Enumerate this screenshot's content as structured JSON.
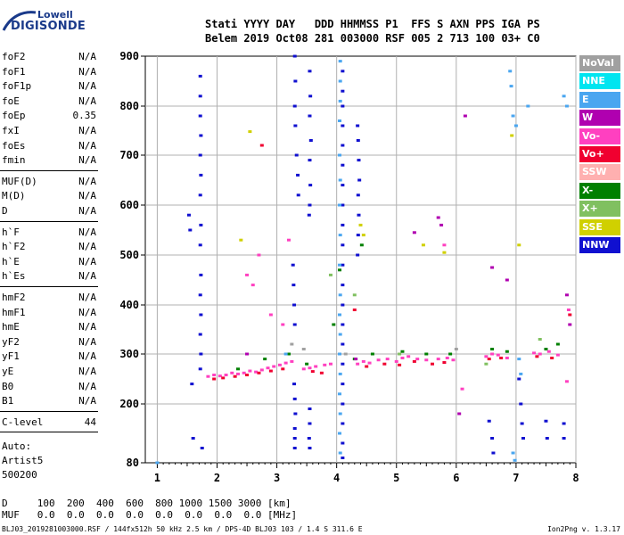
{
  "logo": {
    "line1": "Lowell",
    "line2": "DIGISONDE"
  },
  "header": {
    "line1": "Stati YYYY DAY   DDD HHMMSS P1  FFS S AXN PPS IGA PS",
    "line2": "Belem 2019 Oct08 281 003000 RSF 005 2 713 100 03+ C0"
  },
  "params": {
    "group1": [
      {
        "name": "foF2",
        "value": "N/A"
      },
      {
        "name": "foF1",
        "value": "N/A"
      },
      {
        "name": "foF1p",
        "value": "N/A"
      },
      {
        "name": "foE",
        "value": "N/A"
      },
      {
        "name": "foEp",
        "value": "0.35"
      },
      {
        "name": "fxI",
        "value": "N/A"
      },
      {
        "name": "foEs",
        "value": "N/A"
      },
      {
        "name": "fmin",
        "value": "N/A"
      }
    ],
    "group2": [
      {
        "name": "MUF(D)",
        "value": "N/A"
      },
      {
        "name": "M(D)",
        "value": "N/A"
      },
      {
        "name": "D",
        "value": "N/A"
      }
    ],
    "group3": [
      {
        "name": "h`F",
        "value": "N/A"
      },
      {
        "name": "h`F2",
        "value": "N/A"
      },
      {
        "name": "h`E",
        "value": "N/A"
      },
      {
        "name": "h`Es",
        "value": "N/A"
      }
    ],
    "group4": [
      {
        "name": "hmF2",
        "value": "N/A"
      },
      {
        "name": "hmF1",
        "value": "N/A"
      },
      {
        "name": "hmE",
        "value": "N/A"
      },
      {
        "name": "yF2",
        "value": "N/A"
      },
      {
        "name": "yF1",
        "value": "N/A"
      },
      {
        "name": "yE",
        "value": "N/A"
      },
      {
        "name": "B0",
        "value": "N/A"
      },
      {
        "name": "B1",
        "value": "N/A"
      }
    ],
    "group5": [
      {
        "name": "C-level",
        "value": "44"
      }
    ]
  },
  "auto": {
    "line1": "Auto:",
    "line2": "Artist5",
    "line3": "500200"
  },
  "legend": [
    {
      "label": "NoVal",
      "color": "#a0a0a0"
    },
    {
      "label": "NNE",
      "color": "#00e5f0"
    },
    {
      "label": "E",
      "color": "#4aa6f0"
    },
    {
      "label": "W",
      "color": "#b000b0"
    },
    {
      "label": "Vo-",
      "color": "#ff40c0"
    },
    {
      "label": "Vo+",
      "color": "#f00030"
    },
    {
      "label": "SSW",
      "color": "#ffb0b0"
    },
    {
      "label": "X-",
      "color": "#008000"
    },
    {
      "label": "X+",
      "color": "#80c060"
    },
    {
      "label": "SSE",
      "color": "#d0d000"
    },
    {
      "label": "NNW",
      "color": "#1010d0"
    }
  ],
  "footer": {
    "d_line": "D     100  200  400  600  800 1000 1500 3000 [km]",
    "muf_line": "MUF   0.0  0.0  0.0  0.0  0.0  0.0  0.0  0.0 [MHz]",
    "info": "BLJ03_2019281003000.RSF / 144fx512h 50 kHz 2.5 km / DPS-4D BLJ03 103 / 1.4 S 311.6 E",
    "version": "Ion2Png v. 1.3.17"
  },
  "chart_data": {
    "type": "scatter",
    "xlim": [
      0.8,
      8.0
    ],
    "ylim": [
      80,
      900
    ],
    "xticks": [
      "1",
      "2",
      "3",
      "4",
      "5",
      "6",
      "7",
      "8"
    ],
    "xtick_values": [
      1,
      2,
      3,
      4,
      5,
      6,
      7,
      8
    ],
    "yticks": [
      "80",
      "200",
      "300",
      "400",
      "500",
      "600",
      "700",
      "800",
      "900"
    ],
    "ytick_values": [
      80,
      200,
      300,
      400,
      500,
      600,
      700,
      800,
      900
    ],
    "grid": true,
    "series": [
      {
        "color": "#1010d0",
        "points": [
          [
            1.72,
            860
          ],
          [
            1.72,
            820
          ],
          [
            1.72,
            780
          ],
          [
            1.73,
            740
          ],
          [
            1.72,
            700
          ],
          [
            1.73,
            660
          ],
          [
            1.72,
            620
          ],
          [
            1.73,
            560
          ],
          [
            1.72,
            520
          ],
          [
            1.73,
            460
          ],
          [
            1.72,
            420
          ],
          [
            1.73,
            380
          ],
          [
            1.72,
            340
          ],
          [
            1.73,
            300
          ],
          [
            1.72,
            270
          ],
          [
            1.53,
            580
          ],
          [
            1.55,
            550
          ],
          [
            1.58,
            240
          ],
          [
            1.6,
            130
          ],
          [
            1.75,
            110
          ],
          [
            3.27,
            480
          ],
          [
            3.28,
            440
          ],
          [
            3.29,
            400
          ],
          [
            3.3,
            360
          ],
          [
            3.29,
            240
          ],
          [
            3.3,
            210
          ],
          [
            3.31,
            180
          ],
          [
            3.3,
            150
          ],
          [
            3.3,
            130
          ],
          [
            3.3,
            110
          ],
          [
            3.3,
            900
          ],
          [
            3.31,
            850
          ],
          [
            3.3,
            800
          ],
          [
            3.31,
            760
          ],
          [
            3.33,
            700
          ],
          [
            3.35,
            660
          ],
          [
            3.36,
            620
          ],
          [
            3.55,
            870
          ],
          [
            3.56,
            820
          ],
          [
            3.55,
            780
          ],
          [
            3.57,
            730
          ],
          [
            3.55,
            690
          ],
          [
            3.56,
            640
          ],
          [
            3.55,
            600
          ],
          [
            3.54,
            580
          ],
          [
            3.55,
            190
          ],
          [
            3.55,
            160
          ],
          [
            3.54,
            130
          ],
          [
            3.55,
            110
          ],
          [
            4.1,
            870
          ],
          [
            4.1,
            830
          ],
          [
            4.1,
            800
          ],
          [
            4.1,
            760
          ],
          [
            4.1,
            720
          ],
          [
            4.1,
            680
          ],
          [
            4.1,
            640
          ],
          [
            4.1,
            600
          ],
          [
            4.1,
            560
          ],
          [
            4.1,
            520
          ],
          [
            4.1,
            480
          ],
          [
            4.1,
            440
          ],
          [
            4.1,
            400
          ],
          [
            4.1,
            360
          ],
          [
            4.1,
            320
          ],
          [
            4.1,
            280
          ],
          [
            4.1,
            240
          ],
          [
            4.1,
            200
          ],
          [
            4.1,
            160
          ],
          [
            4.1,
            120
          ],
          [
            4.1,
            90
          ],
          [
            4.35,
            760
          ],
          [
            4.36,
            730
          ],
          [
            4.37,
            690
          ],
          [
            4.38,
            650
          ],
          [
            4.36,
            620
          ],
          [
            4.37,
            580
          ],
          [
            4.36,
            540
          ],
          [
            4.35,
            500
          ],
          [
            6.55,
            165
          ],
          [
            6.6,
            130
          ],
          [
            6.62,
            100
          ],
          [
            7.05,
            250
          ],
          [
            7.08,
            200
          ],
          [
            7.1,
            160
          ],
          [
            7.12,
            130
          ],
          [
            7.5,
            165
          ],
          [
            7.52,
            130
          ],
          [
            7.8,
            160
          ],
          [
            7.8,
            130
          ]
        ]
      },
      {
        "color": "#ff40c0",
        "points": [
          [
            1.85,
            255
          ],
          [
            1.95,
            258
          ],
          [
            2.05,
            256
          ],
          [
            2.15,
            258
          ],
          [
            2.25,
            262
          ],
          [
            2.35,
            260
          ],
          [
            2.45,
            262
          ],
          [
            2.55,
            266
          ],
          [
            2.65,
            264
          ],
          [
            2.75,
            268
          ],
          [
            2.85,
            272
          ],
          [
            2.95,
            275
          ],
          [
            3.05,
            278
          ],
          [
            3.15,
            282
          ],
          [
            3.25,
            285
          ],
          [
            3.45,
            270
          ],
          [
            3.55,
            272
          ],
          [
            3.65,
            275
          ],
          [
            3.8,
            278
          ],
          [
            3.9,
            280
          ],
          [
            4.35,
            280
          ],
          [
            4.45,
            285
          ],
          [
            4.55,
            282
          ],
          [
            4.7,
            288
          ],
          [
            4.85,
            290
          ],
          [
            5.0,
            285
          ],
          [
            5.1,
            292
          ],
          [
            5.2,
            295
          ],
          [
            5.35,
            290
          ],
          [
            5.5,
            288
          ],
          [
            5.7,
            290
          ],
          [
            5.85,
            292
          ],
          [
            5.95,
            288
          ],
          [
            6.1,
            230
          ],
          [
            6.5,
            295
          ],
          [
            6.6,
            300
          ],
          [
            6.7,
            298
          ],
          [
            6.85,
            292
          ],
          [
            7.3,
            302
          ],
          [
            7.4,
            300
          ],
          [
            7.55,
            305
          ],
          [
            7.7,
            298
          ],
          [
            7.85,
            245
          ],
          [
            7.88,
            390
          ],
          [
            3.2,
            530
          ],
          [
            2.7,
            500
          ],
          [
            2.5,
            460
          ],
          [
            2.6,
            440
          ],
          [
            2.9,
            380
          ],
          [
            3.1,
            360
          ],
          [
            5.8,
            520
          ]
        ]
      },
      {
        "color": "#f00030",
        "points": [
          [
            1.95,
            250
          ],
          [
            2.1,
            252
          ],
          [
            2.3,
            255
          ],
          [
            2.5,
            258
          ],
          [
            2.7,
            262
          ],
          [
            2.9,
            266
          ],
          [
            3.1,
            270
          ],
          [
            3.6,
            265
          ],
          [
            3.75,
            262
          ],
          [
            4.5,
            275
          ],
          [
            4.8,
            280
          ],
          [
            5.05,
            278
          ],
          [
            5.3,
            285
          ],
          [
            5.6,
            280
          ],
          [
            5.8,
            283
          ],
          [
            6.55,
            290
          ],
          [
            6.75,
            292
          ],
          [
            7.35,
            295
          ],
          [
            7.6,
            292
          ],
          [
            7.9,
            380
          ],
          [
            4.3,
            390
          ],
          [
            2.75,
            720
          ]
        ]
      },
      {
        "color": "#008000",
        "points": [
          [
            2.35,
            270
          ],
          [
            2.8,
            290
          ],
          [
            3.2,
            300
          ],
          [
            3.5,
            280
          ],
          [
            4.3,
            290
          ],
          [
            4.6,
            300
          ],
          [
            5.1,
            305
          ],
          [
            5.5,
            300
          ],
          [
            5.9,
            300
          ],
          [
            6.6,
            310
          ],
          [
            6.85,
            305
          ],
          [
            7.5,
            310
          ],
          [
            7.7,
            320
          ],
          [
            4.05,
            470
          ],
          [
            4.42,
            520
          ],
          [
            3.95,
            360
          ]
        ]
      },
      {
        "color": "#4aa6f0",
        "points": [
          [
            4.06,
            890
          ],
          [
            4.06,
            850
          ],
          [
            4.06,
            810
          ],
          [
            4.05,
            770
          ],
          [
            4.05,
            700
          ],
          [
            4.06,
            650
          ],
          [
            4.05,
            600
          ],
          [
            4.06,
            540
          ],
          [
            4.05,
            480
          ],
          [
            4.06,
            420
          ],
          [
            4.05,
            380
          ],
          [
            4.06,
            340
          ],
          [
            4.05,
            300
          ],
          [
            4.06,
            260
          ],
          [
            4.05,
            220
          ],
          [
            4.06,
            180
          ],
          [
            4.05,
            140
          ],
          [
            4.06,
            100
          ],
          [
            6.9,
            870
          ],
          [
            6.92,
            840
          ],
          [
            6.95,
            780
          ],
          [
            7.0,
            760
          ],
          [
            7.05,
            290
          ],
          [
            7.08,
            260
          ],
          [
            6.95,
            100
          ],
          [
            6.98,
            85
          ],
          [
            7.8,
            820
          ],
          [
            7.85,
            800
          ],
          [
            7.2,
            800
          ],
          [
            1.0,
            80
          ],
          [
            3.15,
            300
          ]
        ]
      },
      {
        "color": "#b000b0",
        "points": [
          [
            6.15,
            780
          ],
          [
            5.7,
            575
          ],
          [
            5.75,
            560
          ],
          [
            5.3,
            545
          ],
          [
            6.6,
            475
          ],
          [
            6.85,
            450
          ],
          [
            7.85,
            420
          ],
          [
            6.05,
            180
          ],
          [
            4.32,
            290
          ],
          [
            2.5,
            300
          ],
          [
            7.9,
            360
          ]
        ]
      },
      {
        "color": "#d0d000",
        "points": [
          [
            2.55,
            748
          ],
          [
            6.93,
            740
          ],
          [
            7.05,
            520
          ],
          [
            4.4,
            560
          ],
          [
            4.45,
            540
          ],
          [
            5.45,
            520
          ],
          [
            5.8,
            505
          ],
          [
            2.4,
            530
          ]
        ]
      },
      {
        "color": "#80c060",
        "points": [
          [
            3.9,
            460
          ],
          [
            4.3,
            420
          ],
          [
            6.5,
            280
          ],
          [
            7.4,
            330
          ],
          [
            5.05,
            300
          ]
        ]
      },
      {
        "color": "#a0a0a0",
        "points": [
          [
            3.25,
            320
          ],
          [
            3.45,
            310
          ],
          [
            4.15,
            300
          ],
          [
            6.0,
            310
          ]
        ]
      }
    ]
  }
}
